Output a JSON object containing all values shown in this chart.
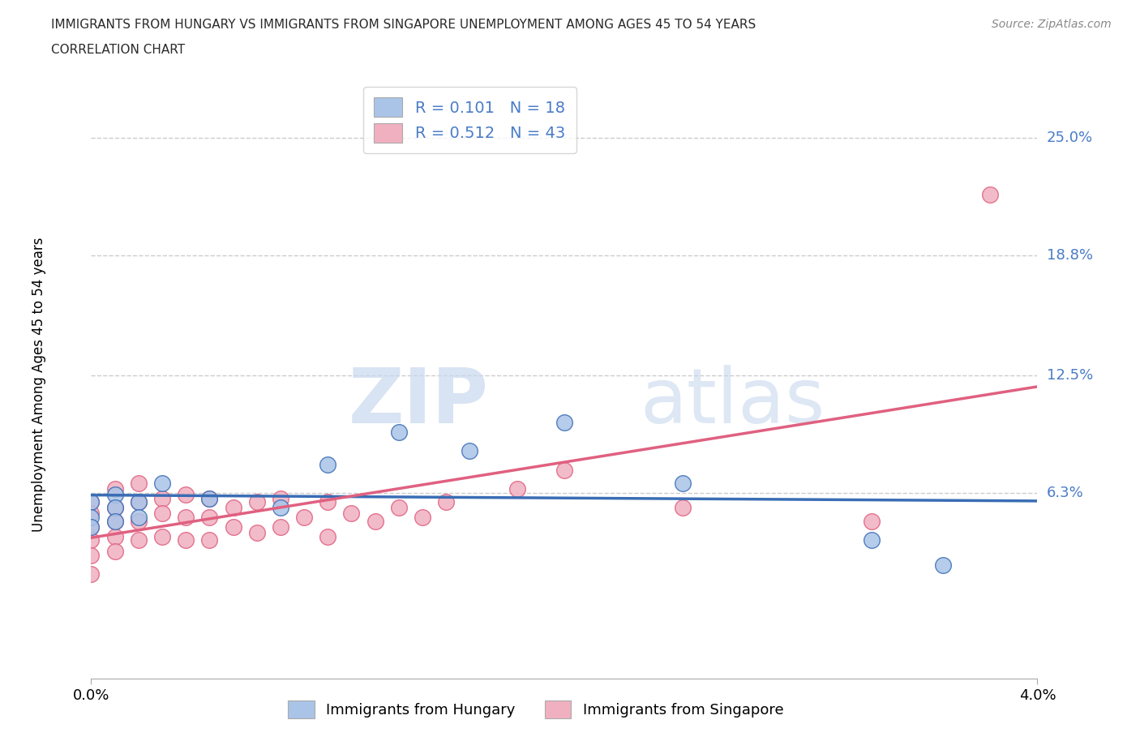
{
  "title_line1": "IMMIGRANTS FROM HUNGARY VS IMMIGRANTS FROM SINGAPORE UNEMPLOYMENT AMONG AGES 45 TO 54 YEARS",
  "title_line2": "CORRELATION CHART",
  "source": "Source: ZipAtlas.com",
  "ylabel": "Unemployment Among Ages 45 to 54 years",
  "watermark_zip": "ZIP",
  "watermark_atlas": "atlas",
  "r_hungary": 0.101,
  "n_hungary": 18,
  "r_singapore": 0.512,
  "n_singapore": 43,
  "color_hungary": "#aac4e8",
  "color_singapore": "#f0b0c0",
  "line_color_hungary": "#3a6db5",
  "line_color_singapore": "#e06080",
  "legend_text_color": "#4a7cc7",
  "ytick_labels": [
    "25.0%",
    "18.8%",
    "12.5%",
    "6.3%"
  ],
  "ytick_values": [
    0.25,
    0.188,
    0.125,
    0.063
  ],
  "xtick_labels": [
    "0.0%",
    "4.0%"
  ],
  "xlim": [
    0.0,
    0.04
  ],
  "ylim": [
    -0.035,
    0.275
  ],
  "hungary_x": [
    0.0,
    0.0,
    0.0,
    0.001,
    0.001,
    0.001,
    0.002,
    0.002,
    0.003,
    0.005,
    0.008,
    0.01,
    0.013,
    0.016,
    0.02,
    0.025,
    0.033,
    0.036
  ],
  "hungary_y": [
    0.058,
    0.05,
    0.045,
    0.062,
    0.055,
    0.048,
    0.058,
    0.05,
    0.068,
    0.06,
    0.055,
    0.078,
    0.095,
    0.085,
    0.1,
    0.068,
    0.038,
    0.025
  ],
  "singapore_x": [
    0.0,
    0.0,
    0.0,
    0.0,
    0.0,
    0.0,
    0.001,
    0.001,
    0.001,
    0.001,
    0.001,
    0.002,
    0.002,
    0.002,
    0.002,
    0.003,
    0.003,
    0.003,
    0.004,
    0.004,
    0.004,
    0.005,
    0.005,
    0.005,
    0.006,
    0.006,
    0.007,
    0.007,
    0.008,
    0.008,
    0.009,
    0.01,
    0.01,
    0.011,
    0.012,
    0.013,
    0.014,
    0.015,
    0.018,
    0.02,
    0.025,
    0.033,
    0.038
  ],
  "singapore_y": [
    0.058,
    0.052,
    0.045,
    0.038,
    0.03,
    0.02,
    0.065,
    0.055,
    0.048,
    0.04,
    0.032,
    0.068,
    0.058,
    0.048,
    0.038,
    0.06,
    0.052,
    0.04,
    0.062,
    0.05,
    0.038,
    0.06,
    0.05,
    0.038,
    0.055,
    0.045,
    0.058,
    0.042,
    0.06,
    0.045,
    0.05,
    0.058,
    0.04,
    0.052,
    0.048,
    0.055,
    0.05,
    0.058,
    0.065,
    0.075,
    0.055,
    0.048,
    0.22
  ],
  "background_color": "#ffffff",
  "grid_color": "#cccccc",
  "title_color": "#2a2a2a",
  "source_color": "#888888"
}
